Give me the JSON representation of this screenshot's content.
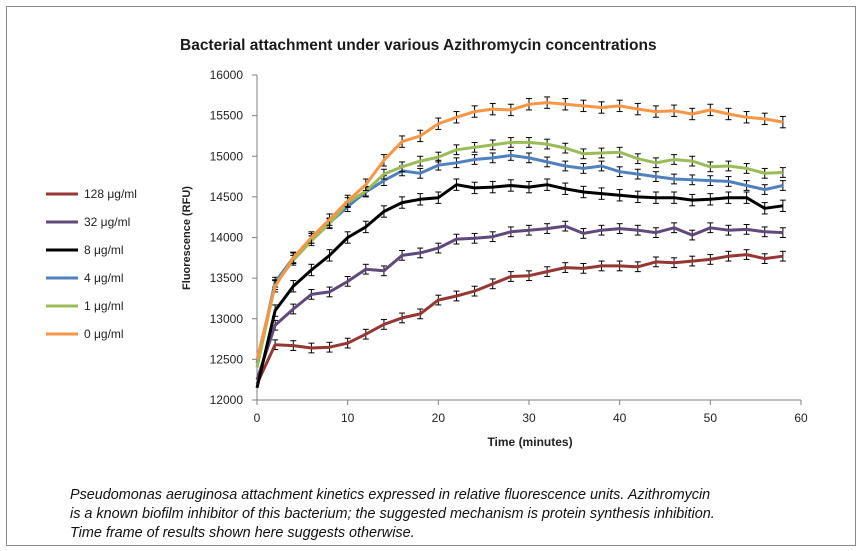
{
  "chart_data": {
    "type": "line",
    "title": "Bacterial attachment under various Azithromycin concentrations",
    "xlabel": "Time (minutes)",
    "ylabel": "Fluorescence (RFU)",
    "xlim": [
      0,
      60
    ],
    "ylim": [
      12000,
      16000
    ],
    "xticks": [
      "0",
      "10",
      "20",
      "30",
      "40",
      "50",
      "60"
    ],
    "yticks": [
      "12000",
      "12500",
      "13000",
      "13500",
      "14000",
      "14500",
      "15000",
      "15500",
      "16000"
    ],
    "grid": false,
    "legend_position": "left",
    "error_bars": true,
    "x": [
      0,
      2,
      4,
      6,
      8,
      10,
      12,
      14,
      16,
      18,
      20,
      22,
      24,
      26,
      28,
      30,
      32,
      34,
      36,
      38,
      40,
      42,
      44,
      46,
      48,
      50,
      52,
      54,
      56,
      58
    ],
    "series": [
      {
        "name": "128 μg/ml",
        "color": "#953735",
        "error": 60,
        "values": [
          12200,
          12680,
          12670,
          12640,
          12650,
          12700,
          12810,
          12930,
          13010,
          13060,
          13230,
          13280,
          13340,
          13430,
          13520,
          13530,
          13580,
          13630,
          13620,
          13650,
          13650,
          13640,
          13700,
          13690,
          13710,
          13730,
          13770,
          13790,
          13740,
          13770
        ]
      },
      {
        "name": "32 μg/ml",
        "color": "#604a7b",
        "error": 60,
        "values": [
          12250,
          12920,
          13120,
          13300,
          13330,
          13460,
          13610,
          13590,
          13780,
          13810,
          13870,
          13980,
          13990,
          14010,
          14070,
          14090,
          14110,
          14140,
          14050,
          14090,
          14110,
          14090,
          14060,
          14120,
          14030,
          14120,
          14090,
          14100,
          14070,
          14060
        ]
      },
      {
        "name": "8 μg/ml",
        "color": "#000000",
        "error": 70,
        "values": [
          12150,
          13100,
          13400,
          13600,
          13780,
          14000,
          14130,
          14320,
          14430,
          14470,
          14490,
          14650,
          14610,
          14620,
          14640,
          14620,
          14650,
          14600,
          14560,
          14540,
          14520,
          14500,
          14490,
          14490,
          14460,
          14470,
          14490,
          14490,
          14360,
          14390
        ]
      },
      {
        "name": "4 μg/ml",
        "color": "#4f81bd",
        "error": 60,
        "values": [
          12450,
          13450,
          13750,
          13990,
          14180,
          14380,
          14560,
          14700,
          14820,
          14790,
          14890,
          14920,
          14960,
          14980,
          15010,
          14980,
          14930,
          14880,
          14850,
          14880,
          14810,
          14780,
          14750,
          14720,
          14710,
          14700,
          14690,
          14640,
          14590,
          14640
        ]
      },
      {
        "name": "1 μg/ml",
        "color": "#9bbb59",
        "error": 60,
        "values": [
          12400,
          13420,
          13720,
          13960,
          14170,
          14430,
          14570,
          14780,
          14870,
          14940,
          14990,
          15080,
          15110,
          15140,
          15170,
          15170,
          15150,
          15100,
          15030,
          15040,
          15050,
          14970,
          14920,
          14960,
          14940,
          14870,
          14880,
          14850,
          14790,
          14800
        ]
      },
      {
        "name": "0 μg/ml",
        "color": "#f79646",
        "error": 70,
        "values": [
          12500,
          13400,
          13750,
          14000,
          14220,
          14450,
          14650,
          14950,
          15180,
          15250,
          15400,
          15480,
          15550,
          15580,
          15570,
          15640,
          15660,
          15640,
          15620,
          15600,
          15620,
          15580,
          15550,
          15560,
          15520,
          15570,
          15520,
          15480,
          15460,
          15420
        ]
      }
    ]
  },
  "caption": {
    "line1": "Pseudomonas aeruginosa attachment kinetics expressed in relative fluorescence units. Azithromycin",
    "line2": "is a known biofilm inhibitor of this bacterium; the suggested mechanism is protein synthesis inhibition.",
    "line3": "Time frame of results shown here suggests otherwise."
  }
}
